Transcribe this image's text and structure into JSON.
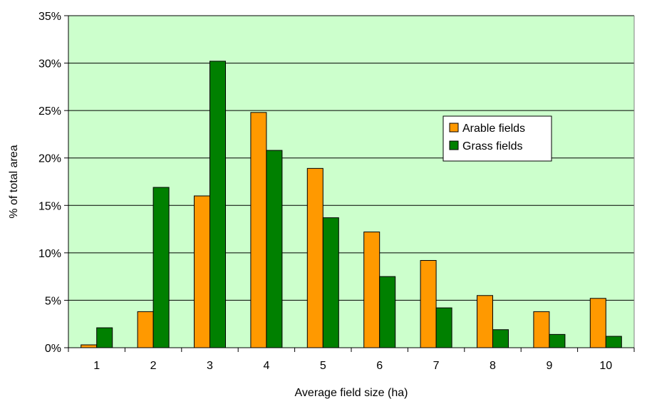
{
  "chart_data": {
    "type": "bar",
    "categories": [
      "1",
      "2",
      "3",
      "4",
      "5",
      "6",
      "7",
      "8",
      "9",
      "10"
    ],
    "series": [
      {
        "name": "Arable fields",
        "color": "#FF9900",
        "values": [
          0.3,
          3.8,
          16.0,
          24.8,
          18.9,
          12.2,
          9.2,
          5.5,
          3.8,
          5.2
        ]
      },
      {
        "name": "Grass fields",
        "color": "#008000",
        "values": [
          2.1,
          16.9,
          30.2,
          20.8,
          13.7,
          7.5,
          4.2,
          1.9,
          1.4,
          1.2
        ]
      }
    ],
    "xlabel": "Average field size (ha)",
    "ylabel": "% of total area",
    "ylim": [
      0,
      35
    ],
    "yticks": [
      0,
      5,
      10,
      15,
      20,
      25,
      30,
      35
    ],
    "ytick_labels": [
      "0%",
      "5%",
      "10%",
      "15%",
      "20%",
      "25%",
      "30%",
      "35%"
    ],
    "grid": "horizontal",
    "legend_position": "upper-right",
    "plot_background": "#CCFFCC"
  }
}
